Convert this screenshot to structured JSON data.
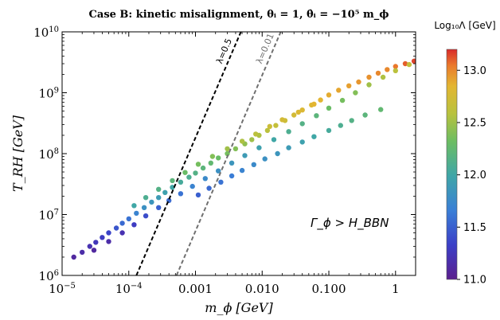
{
  "chart_data": {
    "type": "scatter",
    "title": "Case B: kinetic misalignment, θᵢ = 1, θ̇ᵢ = −10⁵ m_ϕ",
    "xlabel": "m_ϕ [GeV]",
    "ylabel": "T_RH [GeV]",
    "x_scale": "log",
    "y_scale": "log",
    "xlim": [
      1e-05,
      2
    ],
    "ylim": [
      1000000.0,
      10000000000.0
    ],
    "x_ticks": [
      {
        "value": 1e-05,
        "label": "10",
        "sup": "−5"
      },
      {
        "value": 0.0001,
        "label": "10",
        "sup": "−4"
      },
      {
        "value": 0.001,
        "label": "0.001",
        "sup": ""
      },
      {
        "value": 0.01,
        "label": "0.010",
        "sup": ""
      },
      {
        "value": 0.1,
        "label": "0.100",
        "sup": ""
      },
      {
        "value": 1,
        "label": "1",
        "sup": ""
      }
    ],
    "y_ticks": [
      {
        "value": 1000000.0,
        "label": "10",
        "sup": "6"
      },
      {
        "value": 10000000.0,
        "label": "10",
        "sup": "7"
      },
      {
        "value": 100000000.0,
        "label": "10",
        "sup": "8"
      },
      {
        "value": 1000000000.0,
        "label": "10",
        "sup": "9"
      },
      {
        "value": 10000000000.0,
        "label": "10",
        "sup": "10"
      }
    ],
    "grid": false,
    "annotation": "Γ_ϕ > H_BBN",
    "lines": [
      {
        "label": "λ=0.5",
        "style": "dashed",
        "color": "#000000",
        "points": [
          [
            0.00013,
            1000000.0
          ],
          [
            0.0048,
            10000000000.0
          ]
        ]
      },
      {
        "label": "λ=0.01",
        "style": "dashed",
        "color": "#707070",
        "points": [
          [
            0.00052,
            1000000.0
          ],
          [
            0.019,
            10000000000.0
          ]
        ]
      }
    ],
    "colorbar": {
      "label": "Log₁₀Λ [GeV]",
      "min": 11.0,
      "max": 13.2,
      "ticks": [
        11.0,
        11.5,
        12.0,
        12.5,
        13.0
      ],
      "tick_labels": [
        "11.0",
        "11.5",
        "12.0",
        "12.5",
        "13.0"
      ],
      "colormap": "rainbow"
    },
    "series": [
      {
        "points": [
          [
            1.5e-05,
            2000000.0,
            11.1
          ],
          [
            2e-05,
            2400000.0,
            11.15
          ],
          [
            2.6e-05,
            3000000.0,
            11.2
          ],
          [
            3.2e-05,
            3500000.0,
            11.25
          ],
          [
            4e-05,
            4200000.0,
            11.3
          ],
          [
            5e-05,
            5000000.0,
            11.35
          ],
          [
            6.5e-05,
            6000000.0,
            11.45
          ],
          [
            8e-05,
            7200000.0,
            11.55
          ],
          [
            0.0001,
            8500000.0,
            11.6
          ],
          [
            0.00013,
            10500000.0,
            11.7
          ],
          [
            0.00017,
            13000000.0,
            11.8
          ],
          [
            0.00022,
            16000000.0,
            11.85
          ],
          [
            0.00028,
            19000000.0,
            11.9
          ],
          [
            0.00035,
            23000000.0,
            11.95
          ],
          [
            0.00045,
            28000000.0,
            12.0
          ],
          [
            0.0006,
            34000000.0,
            12.05
          ],
          [
            0.0008,
            41000000.0,
            12.1
          ],
          [
            0.001,
            48000000.0,
            12.15
          ],
          [
            0.0013,
            58000000.0,
            12.2
          ],
          [
            0.0017,
            70000000.0,
            12.25
          ],
          [
            0.0022,
            85000000.0,
            12.3
          ],
          [
            0.003,
            100000000.0,
            12.35
          ],
          [
            0.004,
            120000000.0,
            12.4
          ],
          [
            0.0055,
            145000000.0,
            12.45
          ],
          [
            0.007,
            170000000.0,
            12.5
          ],
          [
            0.009,
            200000000.0,
            12.55
          ],
          [
            0.012,
            240000000.0,
            12.6
          ],
          [
            0.016,
            290000000.0,
            12.65
          ],
          [
            0.022,
            350000000.0,
            12.7
          ],
          [
            0.03,
            430000000.0,
            12.75
          ],
          [
            0.04,
            520000000.0,
            12.8
          ],
          [
            0.055,
            630000000.0,
            12.82
          ],
          [
            0.075,
            760000000.0,
            12.85
          ],
          [
            0.1,
            920000000.0,
            12.88
          ],
          [
            0.14,
            1100000000.0,
            12.9
          ],
          [
            0.2,
            1300000000.0,
            12.92
          ],
          [
            0.28,
            1500000000.0,
            12.95
          ],
          [
            0.4,
            1800000000.0,
            12.97
          ],
          [
            0.55,
            2100000000.0,
            13.0
          ],
          [
            0.75,
            2400000000.0,
            13.0
          ],
          [
            1.0,
            2700000000.0,
            13.05
          ],
          [
            1.4,
            3000000000.0,
            13.1
          ],
          [
            1.9,
            3300000000.0,
            13.15
          ],
          [
            3e-05,
            2600000.0,
            11.1
          ],
          [
            5e-05,
            3600000.0,
            11.15
          ],
          [
            8e-05,
            5000000.0,
            11.2
          ],
          [
            0.00012,
            6800000.0,
            11.3
          ],
          [
            0.00018,
            9500000.0,
            11.4
          ],
          [
            0.00028,
            13000000.0,
            11.5
          ],
          [
            0.0004,
            17000000.0,
            11.55
          ],
          [
            0.0006,
            22000000.0,
            11.6
          ],
          [
            0.0009,
            29000000.0,
            11.7
          ],
          [
            0.0014,
            39000000.0,
            11.75
          ],
          [
            0.0022,
            52000000.0,
            11.8
          ],
          [
            0.0035,
            70000000.0,
            11.85
          ],
          [
            0.0055,
            93000000.0,
            11.9
          ],
          [
            0.009,
            125000000.0,
            11.95
          ],
          [
            0.015,
            170000000.0,
            12.0
          ],
          [
            0.025,
            230000000.0,
            12.1
          ],
          [
            0.04,
            310000000.0,
            12.15
          ],
          [
            0.065,
            420000000.0,
            12.2
          ],
          [
            0.1,
            560000000.0,
            12.3
          ],
          [
            0.16,
            750000000.0,
            12.35
          ],
          [
            0.25,
            1000000000.0,
            12.4
          ],
          [
            0.4,
            1350000000.0,
            12.5
          ],
          [
            0.65,
            1800000000.0,
            12.55
          ],
          [
            1.0,
            2300000000.0,
            12.6
          ],
          [
            1.6,
            2900000000.0,
            12.65
          ],
          [
            0.00012,
            14000000.0,
            12.0
          ],
          [
            0.00018,
            19000000.0,
            12.1
          ],
          [
            0.00028,
            26000000.0,
            12.15
          ],
          [
            0.00045,
            36000000.0,
            12.2
          ],
          [
            0.0007,
            49000000.0,
            12.3
          ],
          [
            0.0011,
            67000000.0,
            12.35
          ],
          [
            0.0018,
            90000000.0,
            12.4
          ],
          [
            0.003,
            120000000.0,
            12.5
          ],
          [
            0.005,
            160000000.0,
            12.55
          ],
          [
            0.008,
            210000000.0,
            12.6
          ],
          [
            0.013,
            280000000.0,
            12.7
          ],
          [
            0.02,
            360000000.0,
            12.75
          ],
          [
            0.035,
            480000000.0,
            12.8
          ],
          [
            0.06,
            650000000.0,
            12.85
          ],
          [
            0.0011,
            21000000.0,
            11.5
          ],
          [
            0.0016,
            27000000.0,
            11.55
          ],
          [
            0.0024,
            34000000.0,
            11.6
          ],
          [
            0.0035,
            43000000.0,
            11.65
          ],
          [
            0.005,
            53000000.0,
            11.7
          ],
          [
            0.0075,
            66000000.0,
            11.75
          ],
          [
            0.011,
            82000000.0,
            11.8
          ],
          [
            0.017,
            100000000.0,
            11.85
          ],
          [
            0.025,
            125000000.0,
            11.9
          ],
          [
            0.04,
            155000000.0,
            11.95
          ],
          [
            0.06,
            190000000.0,
            12.0
          ],
          [
            0.1,
            240000000.0,
            12.05
          ],
          [
            0.15,
            290000000.0,
            12.1
          ],
          [
            0.22,
            350000000.0,
            12.15
          ],
          [
            0.35,
            430000000.0,
            12.2
          ],
          [
            0.6,
            530000000.0,
            12.25
          ]
        ]
      }
    ]
  }
}
